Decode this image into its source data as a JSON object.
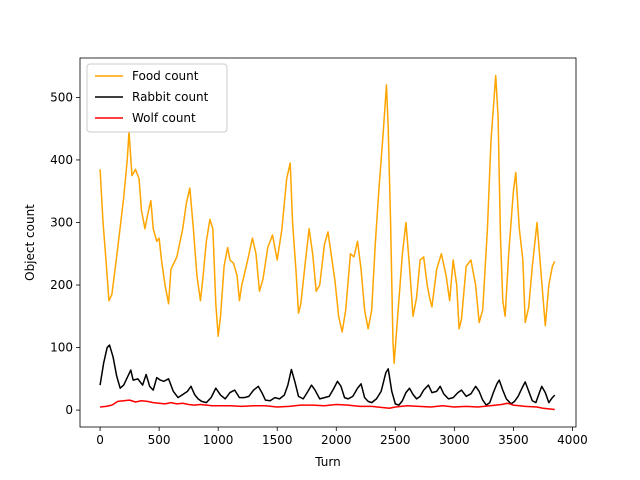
{
  "chart_data": {
    "type": "line",
    "title": "",
    "xlabel": "Turn",
    "ylabel": "Object count",
    "xlim": [
      -170,
      4030
    ],
    "ylim": [
      -27,
      563
    ],
    "xticks": [
      0,
      500,
      1000,
      1500,
      2000,
      2500,
      3000,
      3500,
      4000
    ],
    "xtick_labels": [
      "0",
      "500",
      "1000",
      "1500",
      "2000",
      "2500",
      "3000",
      "3500",
      "4000"
    ],
    "yticks": [
      0,
      100,
      200,
      300,
      400,
      500
    ],
    "ytick_labels": [
      "0",
      "100",
      "200",
      "300",
      "400",
      "500"
    ],
    "grid": false,
    "legend_position": "top-left",
    "series": [
      {
        "name": "Food count",
        "color": "#ffa500",
        "points": [
          [
            0,
            385
          ],
          [
            25,
            300
          ],
          [
            50,
            240
          ],
          [
            75,
            175
          ],
          [
            100,
            185
          ],
          [
            150,
            260
          ],
          [
            200,
            340
          ],
          [
            230,
            400
          ],
          [
            245,
            445
          ],
          [
            270,
            375
          ],
          [
            300,
            385
          ],
          [
            330,
            370
          ],
          [
            350,
            320
          ],
          [
            380,
            290
          ],
          [
            400,
            310
          ],
          [
            430,
            335
          ],
          [
            450,
            290
          ],
          [
            480,
            270
          ],
          [
            500,
            275
          ],
          [
            520,
            240
          ],
          [
            550,
            200
          ],
          [
            580,
            170
          ],
          [
            600,
            225
          ],
          [
            650,
            245
          ],
          [
            700,
            290
          ],
          [
            730,
            330
          ],
          [
            760,
            355
          ],
          [
            790,
            290
          ],
          [
            820,
            215
          ],
          [
            850,
            175
          ],
          [
            870,
            210
          ],
          [
            900,
            270
          ],
          [
            930,
            305
          ],
          [
            955,
            290
          ],
          [
            980,
            170
          ],
          [
            1000,
            118
          ],
          [
            1020,
            150
          ],
          [
            1050,
            230
          ],
          [
            1080,
            260
          ],
          [
            1100,
            240
          ],
          [
            1130,
            235
          ],
          [
            1160,
            215
          ],
          [
            1180,
            175
          ],
          [
            1200,
            200
          ],
          [
            1250,
            240
          ],
          [
            1290,
            275
          ],
          [
            1320,
            250
          ],
          [
            1350,
            190
          ],
          [
            1380,
            210
          ],
          [
            1420,
            260
          ],
          [
            1460,
            280
          ],
          [
            1500,
            240
          ],
          [
            1540,
            290
          ],
          [
            1580,
            370
          ],
          [
            1610,
            395
          ],
          [
            1630,
            300
          ],
          [
            1660,
            220
          ],
          [
            1680,
            155
          ],
          [
            1700,
            170
          ],
          [
            1740,
            240
          ],
          [
            1770,
            290
          ],
          [
            1800,
            250
          ],
          [
            1830,
            190
          ],
          [
            1860,
            200
          ],
          [
            1900,
            265
          ],
          [
            1930,
            285
          ],
          [
            1960,
            245
          ],
          [
            1990,
            205
          ],
          [
            2020,
            150
          ],
          [
            2050,
            125
          ],
          [
            2080,
            160
          ],
          [
            2120,
            250
          ],
          [
            2150,
            245
          ],
          [
            2180,
            270
          ],
          [
            2210,
            225
          ],
          [
            2240,
            160
          ],
          [
            2270,
            130
          ],
          [
            2300,
            160
          ],
          [
            2330,
            265
          ],
          [
            2360,
            350
          ],
          [
            2400,
            450
          ],
          [
            2425,
            520
          ],
          [
            2440,
            450
          ],
          [
            2460,
            300
          ],
          [
            2480,
            110
          ],
          [
            2490,
            75
          ],
          [
            2520,
            150
          ],
          [
            2560,
            250
          ],
          [
            2590,
            300
          ],
          [
            2620,
            230
          ],
          [
            2650,
            150
          ],
          [
            2680,
            180
          ],
          [
            2710,
            240
          ],
          [
            2740,
            245
          ],
          [
            2770,
            200
          ],
          [
            2790,
            180
          ],
          [
            2810,
            165
          ],
          [
            2850,
            225
          ],
          [
            2890,
            250
          ],
          [
            2930,
            215
          ],
          [
            2960,
            175
          ],
          [
            2990,
            240
          ],
          [
            3020,
            200
          ],
          [
            3040,
            130
          ],
          [
            3060,
            145
          ],
          [
            3100,
            230
          ],
          [
            3140,
            240
          ],
          [
            3180,
            200
          ],
          [
            3210,
            140
          ],
          [
            3240,
            160
          ],
          [
            3280,
            290
          ],
          [
            3310,
            430
          ],
          [
            3350,
            535
          ],
          [
            3370,
            470
          ],
          [
            3390,
            280
          ],
          [
            3410,
            175
          ],
          [
            3430,
            150
          ],
          [
            3460,
            250
          ],
          [
            3500,
            350
          ],
          [
            3520,
            380
          ],
          [
            3550,
            290
          ],
          [
            3580,
            240
          ],
          [
            3600,
            140
          ],
          [
            3630,
            165
          ],
          [
            3660,
            230
          ],
          [
            3700,
            300
          ],
          [
            3740,
            205
          ],
          [
            3770,
            135
          ],
          [
            3800,
            200
          ],
          [
            3830,
            230
          ],
          [
            3850,
            238
          ]
        ]
      },
      {
        "name": "Rabbit count",
        "color": "#000000",
        "points": [
          [
            0,
            40
          ],
          [
            30,
            75
          ],
          [
            60,
            100
          ],
          [
            80,
            104
          ],
          [
            110,
            85
          ],
          [
            140,
            55
          ],
          [
            170,
            35
          ],
          [
            200,
            40
          ],
          [
            230,
            52
          ],
          [
            260,
            64
          ],
          [
            280,
            48
          ],
          [
            320,
            50
          ],
          [
            360,
            40
          ],
          [
            390,
            57
          ],
          [
            420,
            38
          ],
          [
            450,
            32
          ],
          [
            480,
            52
          ],
          [
            510,
            48
          ],
          [
            540,
            46
          ],
          [
            580,
            50
          ],
          [
            620,
            30
          ],
          [
            660,
            20
          ],
          [
            700,
            25
          ],
          [
            740,
            30
          ],
          [
            770,
            38
          ],
          [
            800,
            25
          ],
          [
            830,
            18
          ],
          [
            860,
            14
          ],
          [
            900,
            12
          ],
          [
            940,
            20
          ],
          [
            980,
            35
          ],
          [
            1020,
            24
          ],
          [
            1060,
            18
          ],
          [
            1100,
            28
          ],
          [
            1140,
            32
          ],
          [
            1180,
            20
          ],
          [
            1220,
            20
          ],
          [
            1260,
            22
          ],
          [
            1300,
            32
          ],
          [
            1340,
            38
          ],
          [
            1370,
            28
          ],
          [
            1400,
            16
          ],
          [
            1440,
            15
          ],
          [
            1480,
            20
          ],
          [
            1520,
            18
          ],
          [
            1560,
            24
          ],
          [
            1590,
            40
          ],
          [
            1620,
            65
          ],
          [
            1650,
            45
          ],
          [
            1680,
            22
          ],
          [
            1720,
            18
          ],
          [
            1760,
            30
          ],
          [
            1790,
            40
          ],
          [
            1820,
            32
          ],
          [
            1860,
            18
          ],
          [
            1900,
            20
          ],
          [
            1940,
            22
          ],
          [
            1980,
            35
          ],
          [
            2010,
            46
          ],
          [
            2040,
            38
          ],
          [
            2070,
            20
          ],
          [
            2100,
            18
          ],
          [
            2140,
            22
          ],
          [
            2180,
            35
          ],
          [
            2210,
            42
          ],
          [
            2240,
            20
          ],
          [
            2270,
            14
          ],
          [
            2300,
            12
          ],
          [
            2340,
            18
          ],
          [
            2380,
            30
          ],
          [
            2420,
            60
          ],
          [
            2440,
            66
          ],
          [
            2470,
            30
          ],
          [
            2500,
            10
          ],
          [
            2530,
            8
          ],
          [
            2560,
            15
          ],
          [
            2590,
            28
          ],
          [
            2620,
            35
          ],
          [
            2650,
            25
          ],
          [
            2680,
            18
          ],
          [
            2710,
            22
          ],
          [
            2740,
            32
          ],
          [
            2780,
            40
          ],
          [
            2810,
            28
          ],
          [
            2850,
            30
          ],
          [
            2880,
            38
          ],
          [
            2910,
            26
          ],
          [
            2950,
            18
          ],
          [
            2990,
            20
          ],
          [
            3030,
            28
          ],
          [
            3060,
            32
          ],
          [
            3100,
            22
          ],
          [
            3140,
            26
          ],
          [
            3180,
            38
          ],
          [
            3210,
            30
          ],
          [
            3240,
            16
          ],
          [
            3270,
            8
          ],
          [
            3300,
            12
          ],
          [
            3330,
            28
          ],
          [
            3360,
            42
          ],
          [
            3380,
            48
          ],
          [
            3410,
            32
          ],
          [
            3440,
            18
          ],
          [
            3480,
            10
          ],
          [
            3510,
            14
          ],
          [
            3540,
            22
          ],
          [
            3580,
            38
          ],
          [
            3600,
            45
          ],
          [
            3630,
            30
          ],
          [
            3660,
            15
          ],
          [
            3690,
            12
          ],
          [
            3720,
            28
          ],
          [
            3740,
            38
          ],
          [
            3770,
            28
          ],
          [
            3800,
            12
          ],
          [
            3830,
            20
          ],
          [
            3850,
            24
          ]
        ]
      },
      {
        "name": "Wolf count",
        "color": "#ff0000",
        "points": [
          [
            0,
            5
          ],
          [
            50,
            6
          ],
          [
            100,
            8
          ],
          [
            150,
            14
          ],
          [
            200,
            15
          ],
          [
            250,
            16
          ],
          [
            300,
            13
          ],
          [
            350,
            15
          ],
          [
            400,
            14
          ],
          [
            450,
            12
          ],
          [
            500,
            11
          ],
          [
            550,
            10
          ],
          [
            600,
            12
          ],
          [
            650,
            10
          ],
          [
            700,
            11
          ],
          [
            750,
            9
          ],
          [
            800,
            8
          ],
          [
            850,
            9
          ],
          [
            900,
            8
          ],
          [
            950,
            7
          ],
          [
            1000,
            7
          ],
          [
            1100,
            7
          ],
          [
            1200,
            6
          ],
          [
            1300,
            7
          ],
          [
            1400,
            7
          ],
          [
            1500,
            5
          ],
          [
            1600,
            6
          ],
          [
            1700,
            8
          ],
          [
            1800,
            8
          ],
          [
            1900,
            7
          ],
          [
            2000,
            9
          ],
          [
            2100,
            8
          ],
          [
            2200,
            6
          ],
          [
            2300,
            6
          ],
          [
            2400,
            4
          ],
          [
            2450,
            3
          ],
          [
            2500,
            5
          ],
          [
            2600,
            7
          ],
          [
            2700,
            6
          ],
          [
            2800,
            5
          ],
          [
            2900,
            7
          ],
          [
            3000,
            5
          ],
          [
            3100,
            6
          ],
          [
            3200,
            5
          ],
          [
            3300,
            7
          ],
          [
            3400,
            9
          ],
          [
            3450,
            11
          ],
          [
            3500,
            8
          ],
          [
            3600,
            6
          ],
          [
            3700,
            5
          ],
          [
            3750,
            3
          ],
          [
            3800,
            2
          ],
          [
            3850,
            1
          ]
        ]
      }
    ]
  }
}
